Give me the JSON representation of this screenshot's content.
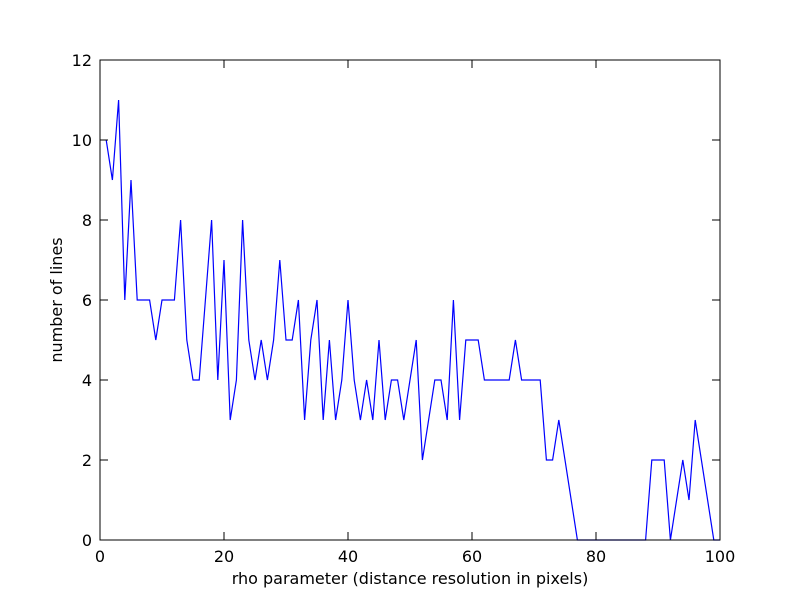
{
  "chart_data": {
    "type": "line",
    "title": "",
    "xlabel": "rho parameter (distance resolution in pixels)",
    "ylabel": "number of lines",
    "xlim": [
      0,
      100
    ],
    "ylim": [
      0,
      12
    ],
    "grid": false,
    "xticks": [
      0,
      20,
      40,
      60,
      80,
      100
    ],
    "yticks": [
      0,
      2,
      4,
      6,
      8,
      10,
      12
    ],
    "series": [
      {
        "color": "#0000ff",
        "x": [
          1,
          2,
          3,
          4,
          5,
          6,
          7,
          8,
          9,
          10,
          11,
          12,
          13,
          14,
          15,
          16,
          17,
          18,
          19,
          20,
          21,
          22,
          23,
          24,
          25,
          26,
          27,
          28,
          29,
          30,
          31,
          32,
          33,
          34,
          35,
          36,
          37,
          38,
          39,
          40,
          41,
          42,
          43,
          44,
          45,
          46,
          47,
          48,
          49,
          50,
          51,
          52,
          53,
          54,
          55,
          56,
          57,
          58,
          59,
          60,
          61,
          62,
          63,
          64,
          65,
          66,
          67,
          68,
          69,
          70,
          71,
          72,
          73,
          74,
          75,
          76,
          77,
          78,
          79,
          80,
          81,
          82,
          83,
          84,
          85,
          86,
          87,
          88,
          89,
          90,
          91,
          92,
          93,
          94,
          95,
          96,
          97,
          98,
          99,
          100
        ],
        "y": [
          10,
          9,
          11,
          6,
          9,
          6,
          6,
          6,
          5,
          6,
          6,
          6,
          8,
          5,
          4,
          4,
          6,
          8,
          4,
          7,
          3,
          4,
          8,
          5,
          4,
          5,
          4,
          5,
          7,
          5,
          5,
          6,
          3,
          5,
          6,
          3,
          5,
          3,
          4,
          6,
          4,
          3,
          4,
          3,
          5,
          3,
          4,
          4,
          3,
          4,
          5,
          2,
          3,
          4,
          4,
          3,
          6,
          3,
          5,
          5,
          5,
          4,
          4,
          4,
          4,
          4,
          5,
          4,
          4,
          4,
          4,
          2,
          2,
          3,
          2,
          1,
          0,
          0,
          0,
          0,
          0,
          0,
          0,
          0,
          0,
          0,
          0,
          0,
          2,
          2,
          2,
          0,
          1,
          2,
          1,
          3,
          2,
          1,
          0,
          0
        ]
      }
    ]
  }
}
